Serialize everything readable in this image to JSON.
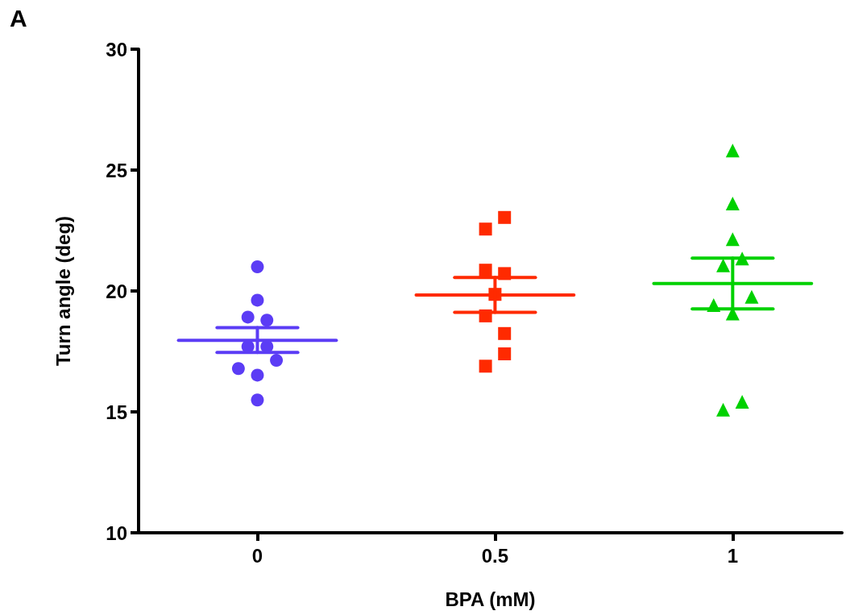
{
  "chart_data": {
    "type": "scatter",
    "xlabel": "BPA (mM)",
    "ylabel": "Turn angle (deg)",
    "annotations": [
      "A"
    ],
    "xlim": [
      -0.25,
      1.23
    ],
    "xticks": [
      0,
      0.5,
      1
    ],
    "ylim": [
      10,
      30
    ],
    "yticks": [
      10,
      15,
      20,
      25,
      30
    ],
    "grid": false,
    "series": [
      {
        "color": "#5b3cf5",
        "marker": "circle",
        "x": [
          0,
          0,
          -0.02,
          0.02,
          -0.02,
          0.02,
          0.04,
          -0.04,
          0,
          0
        ],
        "values": [
          21.0,
          19.62,
          18.92,
          18.79,
          17.7,
          17.7,
          17.13,
          16.79,
          16.52,
          15.49
        ]
      },
      {
        "color": "#ff2a00",
        "marker": "square",
        "x": [
          0.52,
          0.48,
          0.48,
          0.52,
          0.5,
          0.48,
          0.52,
          0.52,
          0.48
        ],
        "values": [
          23.04,
          22.56,
          20.86,
          20.72,
          19.86,
          18.97,
          18.24,
          17.4,
          16.89
        ]
      },
      {
        "color": "#00d100",
        "marker": "triangle",
        "x": [
          1,
          1,
          1,
          1.02,
          0.98,
          1.04,
          0.96,
          1,
          1.02,
          0.98
        ],
        "values": [
          25.81,
          23.62,
          22.14,
          21.34,
          21.06,
          19.76,
          19.42,
          19.07,
          15.42,
          15.09
        ]
      },
      {
        "type": "line",
        "marker": "none",
        "line_style": "solid",
        "color": "#5b3cf5",
        "x": [
          -0.166,
          0.166
        ],
        "values": [
          17.96,
          17.96
        ]
      },
      {
        "type": "line",
        "marker": "none",
        "line_style": "solid",
        "color": "#5b3cf5",
        "x": [
          -0.085,
          0.085
        ],
        "values": [
          18.48,
          18.48
        ]
      },
      {
        "type": "line",
        "marker": "none",
        "line_style": "solid",
        "color": "#5b3cf5",
        "x": [
          -0.085,
          0.085
        ],
        "values": [
          17.46,
          17.46
        ]
      },
      {
        "type": "line",
        "marker": "none",
        "line_style": "solid",
        "color": "#5b3cf5",
        "x": [
          0,
          0
        ],
        "values": [
          17.46,
          18.48
        ]
      },
      {
        "type": "line",
        "marker": "none",
        "line_style": "solid",
        "color": "#ff2a00",
        "x": [
          0.334,
          0.666
        ],
        "values": [
          19.83,
          19.83
        ]
      },
      {
        "type": "line",
        "marker": "none",
        "line_style": "solid",
        "color": "#ff2a00",
        "x": [
          0.415,
          0.585
        ],
        "values": [
          20.56,
          20.56
        ]
      },
      {
        "type": "line",
        "marker": "none",
        "line_style": "solid",
        "color": "#ff2a00",
        "x": [
          0.415,
          0.585
        ],
        "values": [
          19.12,
          19.12
        ]
      },
      {
        "type": "line",
        "marker": "none",
        "line_style": "solid",
        "color": "#ff2a00",
        "x": [
          0.5,
          0.5
        ],
        "values": [
          19.12,
          20.56
        ]
      },
      {
        "type": "line",
        "marker": "none",
        "line_style": "solid",
        "color": "#00d100",
        "x": [
          0.834,
          1.166
        ],
        "values": [
          20.31,
          20.31
        ]
      },
      {
        "type": "line",
        "marker": "none",
        "line_style": "solid",
        "color": "#00d100",
        "x": [
          0.915,
          1.085
        ],
        "values": [
          21.36,
          21.36
        ]
      },
      {
        "type": "line",
        "marker": "none",
        "line_style": "solid",
        "color": "#00d100",
        "x": [
          0.915,
          1.085
        ],
        "values": [
          19.26,
          19.26
        ]
      },
      {
        "type": "line",
        "marker": "none",
        "line_style": "solid",
        "color": "#00d100",
        "x": [
          1,
          1
        ],
        "values": [
          19.26,
          21.36
        ]
      }
    ]
  }
}
